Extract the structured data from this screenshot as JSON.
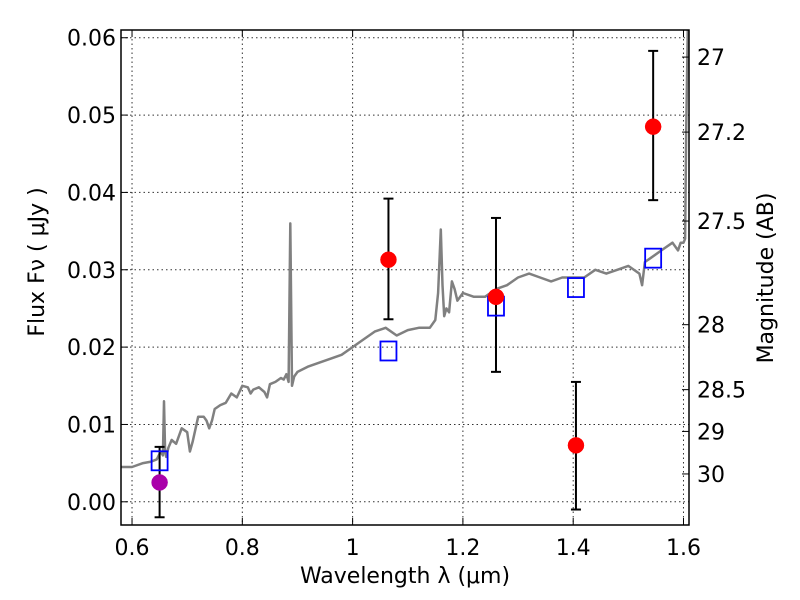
{
  "chart_data": {
    "type": "scatter",
    "xlabel": "Wavelength  λ (μm)",
    "ylabel": "Flux  Fν  ( μJy )",
    "ylabel_right": "Magnitude (AB)",
    "xlim": [
      0.58,
      1.61
    ],
    "ylim": [
      -0.003,
      0.061
    ],
    "x_ticks": [
      0.6,
      0.8,
      1.0,
      1.2,
      1.4,
      1.6
    ],
    "x_tick_labels": [
      "0.6",
      "0.8",
      "1",
      "1.2",
      "1.4",
      "1.6"
    ],
    "y_ticks": [
      0.0,
      0.01,
      0.02,
      0.03,
      0.04,
      0.05,
      0.06
    ],
    "y_tick_labels": [
      "0.00",
      "0.01",
      "0.02",
      "0.03",
      "0.04",
      "0.05",
      "0.06"
    ],
    "right_ticks": [
      {
        "label": "27",
        "flux": 0.0575
      },
      {
        "label": "27.2",
        "flux": 0.0478
      },
      {
        "label": "27.5",
        "flux": 0.0363
      },
      {
        "label": "28",
        "flux": 0.0229
      },
      {
        "label": "28.5",
        "flux": 0.0145
      },
      {
        "label": "29",
        "flux": 0.0091
      },
      {
        "label": "30",
        "flux": 0.0036
      }
    ],
    "grid": true,
    "series": [
      {
        "kind": "line",
        "color": "#808080",
        "x": [
          0.58,
          0.6,
          0.62,
          0.635,
          0.645,
          0.652,
          0.656,
          0.658,
          0.66,
          0.662,
          0.666,
          0.672,
          0.68,
          0.69,
          0.7,
          0.705,
          0.71,
          0.72,
          0.73,
          0.735,
          0.74,
          0.745,
          0.75,
          0.76,
          0.77,
          0.78,
          0.79,
          0.8,
          0.81,
          0.815,
          0.82,
          0.83,
          0.84,
          0.845,
          0.85,
          0.86,
          0.87,
          0.875,
          0.88,
          0.884,
          0.887,
          0.89,
          0.894,
          0.9,
          0.92,
          0.94,
          0.96,
          0.98,
          1.0,
          1.02,
          1.04,
          1.06,
          1.08,
          1.1,
          1.12,
          1.14,
          1.15,
          1.155,
          1.16,
          1.163,
          1.166,
          1.17,
          1.175,
          1.18,
          1.185,
          1.19,
          1.2,
          1.22,
          1.24,
          1.26,
          1.28,
          1.3,
          1.32,
          1.34,
          1.36,
          1.38,
          1.4,
          1.42,
          1.44,
          1.46,
          1.48,
          1.5,
          1.52,
          1.525,
          1.53,
          1.54,
          1.56,
          1.58,
          1.59,
          1.595,
          1.6,
          1.603,
          1.605,
          1.608
        ],
        "y": [
          0.0045,
          0.0045,
          0.005,
          0.0052,
          0.0055,
          0.0065,
          0.006,
          0.013,
          0.0065,
          0.0058,
          0.007,
          0.008,
          0.0075,
          0.0095,
          0.009,
          0.0065,
          0.0078,
          0.011,
          0.011,
          0.0105,
          0.0095,
          0.0105,
          0.012,
          0.0125,
          0.0128,
          0.014,
          0.0135,
          0.015,
          0.0148,
          0.014,
          0.0145,
          0.0148,
          0.0142,
          0.0135,
          0.0152,
          0.0155,
          0.016,
          0.0158,
          0.0165,
          0.0155,
          0.036,
          0.015,
          0.0162,
          0.0168,
          0.0175,
          0.018,
          0.0185,
          0.019,
          0.02,
          0.021,
          0.022,
          0.0225,
          0.0215,
          0.0222,
          0.0225,
          0.0225,
          0.0235,
          0.027,
          0.0352,
          0.028,
          0.024,
          0.025,
          0.0245,
          0.0285,
          0.0275,
          0.026,
          0.027,
          0.0265,
          0.0265,
          0.0275,
          0.028,
          0.029,
          0.0295,
          0.029,
          0.0285,
          0.029,
          0.029,
          0.029,
          0.03,
          0.0295,
          0.03,
          0.0305,
          0.0295,
          0.028,
          0.031,
          0.0315,
          0.0325,
          0.0335,
          0.0325,
          0.0335,
          0.0335,
          0.034,
          0.048,
          0.062
        ]
      },
      {
        "kind": "squares",
        "color": "#0000ff",
        "x": [
          0.65,
          1.065,
          1.26,
          1.405,
          1.545
        ],
        "y": [
          0.0053,
          0.0195,
          0.0253,
          0.0277,
          0.0315
        ]
      },
      {
        "kind": "points",
        "color": "#ff0000",
        "x": [
          1.065,
          1.26,
          1.405,
          1.545
        ],
        "y": [
          0.0313,
          0.0265,
          0.0073,
          0.0485
        ],
        "yerr_low": [
          0.0236,
          0.0168,
          -0.001,
          0.039
        ],
        "yerr_high": [
          0.0392,
          0.0367,
          0.0155,
          0.0583
        ]
      },
      {
        "kind": "points",
        "color": "#aa00aa",
        "x": [
          0.65
        ],
        "y": [
          0.0025
        ],
        "yerr_low": [
          -0.002
        ],
        "yerr_high": [
          0.0071
        ]
      }
    ]
  }
}
